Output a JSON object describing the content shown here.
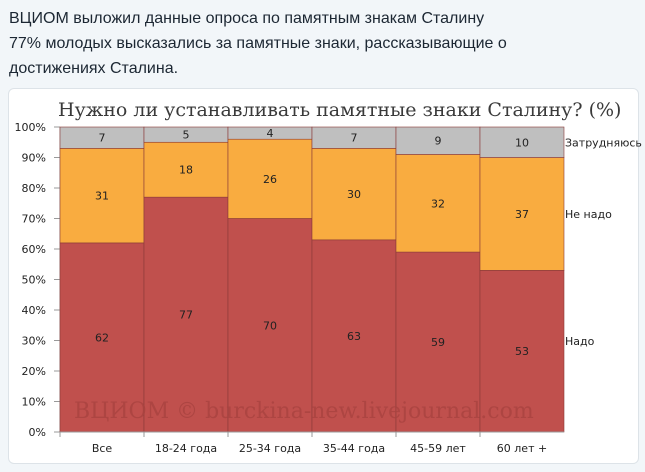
{
  "tweet": {
    "lines": [
      "ВЦИОМ выложил данные опроса по памятным знакам Сталину",
      " 77% молодых высказались за памятные знаки, рассказывающие о",
      "достижениях Сталина."
    ]
  },
  "chart_data": {
    "type": "bar",
    "stacked": true,
    "title": "Нужно ли устанавливать памятные знаки Сталину? (%)",
    "categories": [
      "Все",
      "18-24 года",
      "25-34 года",
      "35-44 года",
      "45-59 лет",
      "60 лет +"
    ],
    "series": [
      {
        "name": "Надо",
        "color": "#c0504d",
        "values": [
          62,
          77,
          70,
          63,
          59,
          53
        ]
      },
      {
        "name": "Не надо",
        "color": "#f9ac40",
        "values": [
          31,
          18,
          26,
          30,
          32,
          37
        ]
      },
      {
        "name": "Затрудняюсь",
        "color": "#bfbfbf",
        "values": [
          7,
          5,
          4,
          7,
          9,
          10
        ]
      }
    ],
    "y_ticks": [
      "0%",
      "10%",
      "20%",
      "30%",
      "40%",
      "50%",
      "60%",
      "70%",
      "80%",
      "90%",
      "100%"
    ],
    "ylim": [
      0,
      100
    ],
    "legend": "right",
    "watermark": "ВЦИОМ © burckina-new.livejournal.com"
  }
}
